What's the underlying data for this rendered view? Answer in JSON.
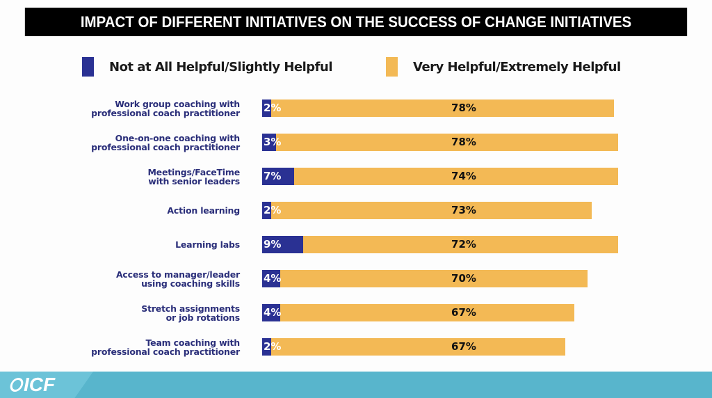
{
  "chart_data": {
    "type": "bar",
    "orientation": "horizontal-stacked",
    "title": "IMPACT OF DIFFERENT INITIATIVES ON THE SUCCESS OF CHANGE INITIATIVES",
    "xlabel": "",
    "ylabel": "",
    "legend_position": "top",
    "grid": false,
    "categories": [
      "Work group coaching with professional coach practitioner",
      "One-on-one coaching with professional coach practitioner",
      "Meetings/FaceTime with senior leaders",
      "Action learning",
      "Learning labs",
      "Access to manager/leader using coaching skills",
      "Stretch assignments or job rotations",
      "Team coaching with professional coach practitioner"
    ],
    "category_lines": [
      [
        "Work group coaching with",
        "professional coach practitioner"
      ],
      [
        "One-on-one coaching with",
        "professional coach practitioner"
      ],
      [
        "Meetings/FaceTime",
        "with senior leaders"
      ],
      [
        "Action learning"
      ],
      [
        "Learning labs"
      ],
      [
        "Access to manager/leader",
        "using coaching skills"
      ],
      [
        "Stretch assignments",
        "or job rotations"
      ],
      [
        "Team coaching with",
        "professional coach practitioner"
      ]
    ],
    "series": [
      {
        "name": "Not at All Helpful/Slightly Helpful",
        "color": "#2a3193",
        "values": [
          2,
          3,
          7,
          2,
          9,
          4,
          4,
          2
        ]
      },
      {
        "name": "Very Helpful/Extremely Helpful",
        "color": "#f3b955",
        "values": [
          78,
          78,
          74,
          73,
          72,
          70,
          67,
          67
        ]
      }
    ],
    "unit": "%"
  },
  "footer": {
    "logo_text": "ICF"
  }
}
